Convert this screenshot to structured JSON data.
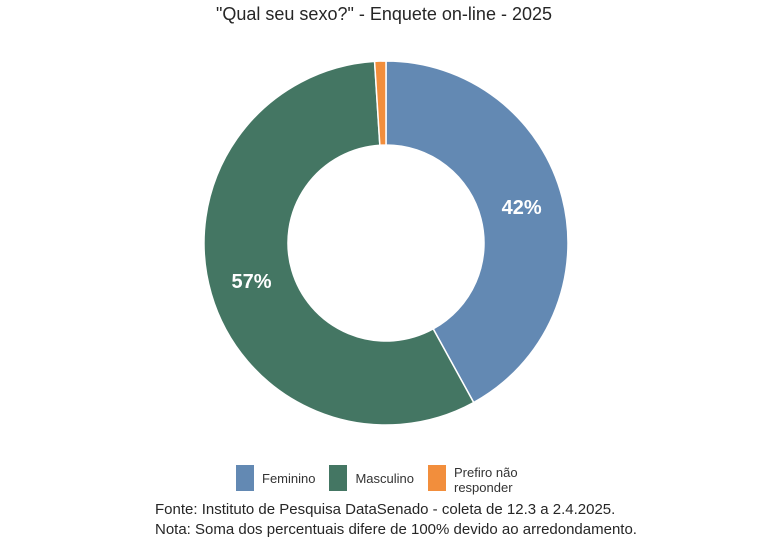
{
  "chart_data": {
    "type": "pie",
    "style": "donut",
    "title": "\"Qual seu sexo?\" - Enquete on-line - 2025",
    "categories": [
      "Feminino",
      "Masculino",
      "Prefiro não responder"
    ],
    "values": [
      42,
      57,
      1
    ],
    "value_labels": [
      "42%",
      "57%",
      ""
    ],
    "colors": [
      "#6389B3",
      "#447663",
      "#F28E3C"
    ],
    "legend_position": "bottom"
  },
  "footer": {
    "source": "Fonte: Instituto de Pesquisa DataSenado - coleta de 12.3 a 2.4.2025.",
    "note": "Nota: Soma dos percentuais difere de 100% devido ao arredondamento."
  }
}
